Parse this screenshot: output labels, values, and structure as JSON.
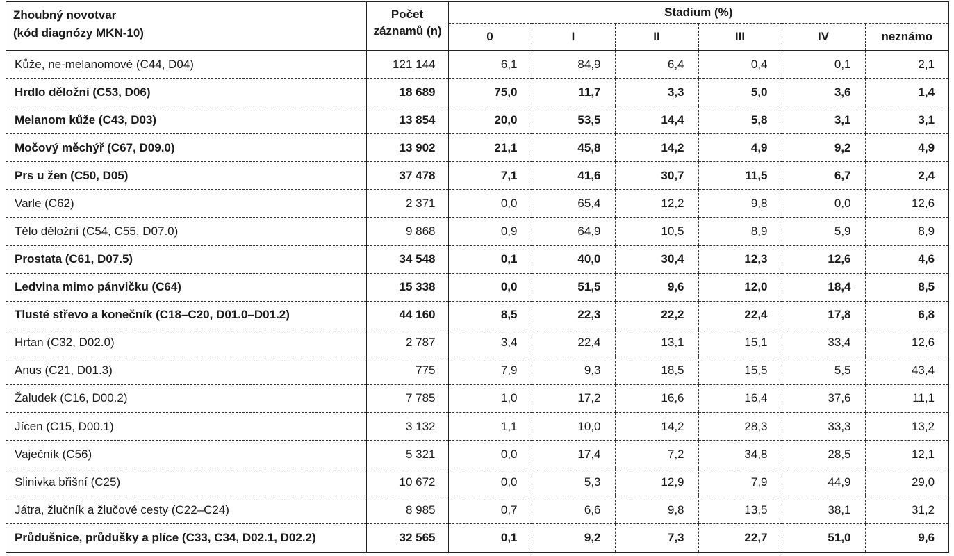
{
  "header": {
    "name_line1": "Zhoubný novotvar",
    "name_line2": "(kód diagnózy MKN-10)",
    "count_line1": "Počet",
    "count_line2": "záznamů (n)",
    "stadium": "Stadium (%)",
    "stages": [
      "0",
      "I",
      "II",
      "III",
      "IV",
      "neznámo"
    ]
  },
  "rows": [
    {
      "name": "Kůže, ne-melanomové (C44, D04)",
      "count": "121 144",
      "values": [
        "6,1",
        "84,9",
        "6,4",
        "0,4",
        "0,1",
        "2,1"
      ],
      "bold": false
    },
    {
      "name": "Hrdlo děložní (C53, D06)",
      "count": "18 689",
      "values": [
        "75,0",
        "11,7",
        "3,3",
        "5,0",
        "3,6",
        "1,4"
      ],
      "bold": true
    },
    {
      "name": "Melanom kůže (C43, D03)",
      "count": "13 854",
      "values": [
        "20,0",
        "53,5",
        "14,4",
        "5,8",
        "3,1",
        "3,1"
      ],
      "bold": true
    },
    {
      "name": "Močový měchýř (C67, D09.0)",
      "count": "13 902",
      "values": [
        "21,1",
        "45,8",
        "14,2",
        "4,9",
        "9,2",
        "4,9"
      ],
      "bold": true
    },
    {
      "name": "Prs u žen (C50, D05)",
      "count": "37 478",
      "values": [
        "7,1",
        "41,6",
        "30,7",
        "11,5",
        "6,7",
        "2,4"
      ],
      "bold": true
    },
    {
      "name": "Varle (C62)",
      "count": "2 371",
      "values": [
        "0,0",
        "65,4",
        "12,2",
        "9,8",
        "0,0",
        "12,6"
      ],
      "bold": false
    },
    {
      "name": "Tělo děložní (C54, C55, D07.0)",
      "count": "9 868",
      "values": [
        "0,9",
        "64,9",
        "10,5",
        "8,9",
        "5,9",
        "8,9"
      ],
      "bold": false
    },
    {
      "name": "Prostata (C61, D07.5)",
      "count": "34 548",
      "values": [
        "0,1",
        "40,0",
        "30,4",
        "12,3",
        "12,6",
        "4,6"
      ],
      "bold": true
    },
    {
      "name": "Ledvina mimo pánvičku (C64)",
      "count": "15 338",
      "values": [
        "0,0",
        "51,5",
        "9,6",
        "12,0",
        "18,4",
        "8,5"
      ],
      "bold": true
    },
    {
      "name": "Tlusté střevo a konečník (C18–C20, D01.0–D01.2)",
      "count": "44 160",
      "values": [
        "8,5",
        "22,3",
        "22,2",
        "22,4",
        "17,8",
        "6,8"
      ],
      "bold": true
    },
    {
      "name": "Hrtan (C32, D02.0)",
      "count": "2 787",
      "values": [
        "3,4",
        "22,4",
        "13,1",
        "15,1",
        "33,4",
        "12,6"
      ],
      "bold": false
    },
    {
      "name": "Anus (C21, D01.3)",
      "count": "775",
      "values": [
        "7,9",
        "9,3",
        "18,5",
        "15,5",
        "5,5",
        "43,4"
      ],
      "bold": false
    },
    {
      "name": "Žaludek (C16, D00.2)",
      "count": "7 785",
      "values": [
        "1,0",
        "17,2",
        "16,6",
        "16,4",
        "37,6",
        "11,1"
      ],
      "bold": false
    },
    {
      "name": "Jícen (C15, D00.1)",
      "count": "3 132",
      "values": [
        "1,1",
        "10,0",
        "14,2",
        "28,3",
        "33,3",
        "13,2"
      ],
      "bold": false
    },
    {
      "name": "Vaječník (C56)",
      "count": "5 321",
      "values": [
        "0,0",
        "17,4",
        "7,2",
        "34,8",
        "28,5",
        "12,1"
      ],
      "bold": false
    },
    {
      "name": "Slinivka břišní (C25)",
      "count": "10 672",
      "values": [
        "0,0",
        "5,3",
        "12,9",
        "7,9",
        "44,9",
        "29,0"
      ],
      "bold": false
    },
    {
      "name": "Játra, žlučník a žlučové cesty (C22–C24)",
      "count": "8 985",
      "values": [
        "0,7",
        "6,6",
        "9,8",
        "13,5",
        "38,1",
        "31,2"
      ],
      "bold": false
    },
    {
      "name": "Průdušnice, průdušky a plíce (C33, C34, D02.1, D02.2)",
      "count": "32 565",
      "values": [
        "0,1",
        "9,2",
        "7,3",
        "22,7",
        "51,0",
        "9,6"
      ],
      "bold": true
    }
  ]
}
